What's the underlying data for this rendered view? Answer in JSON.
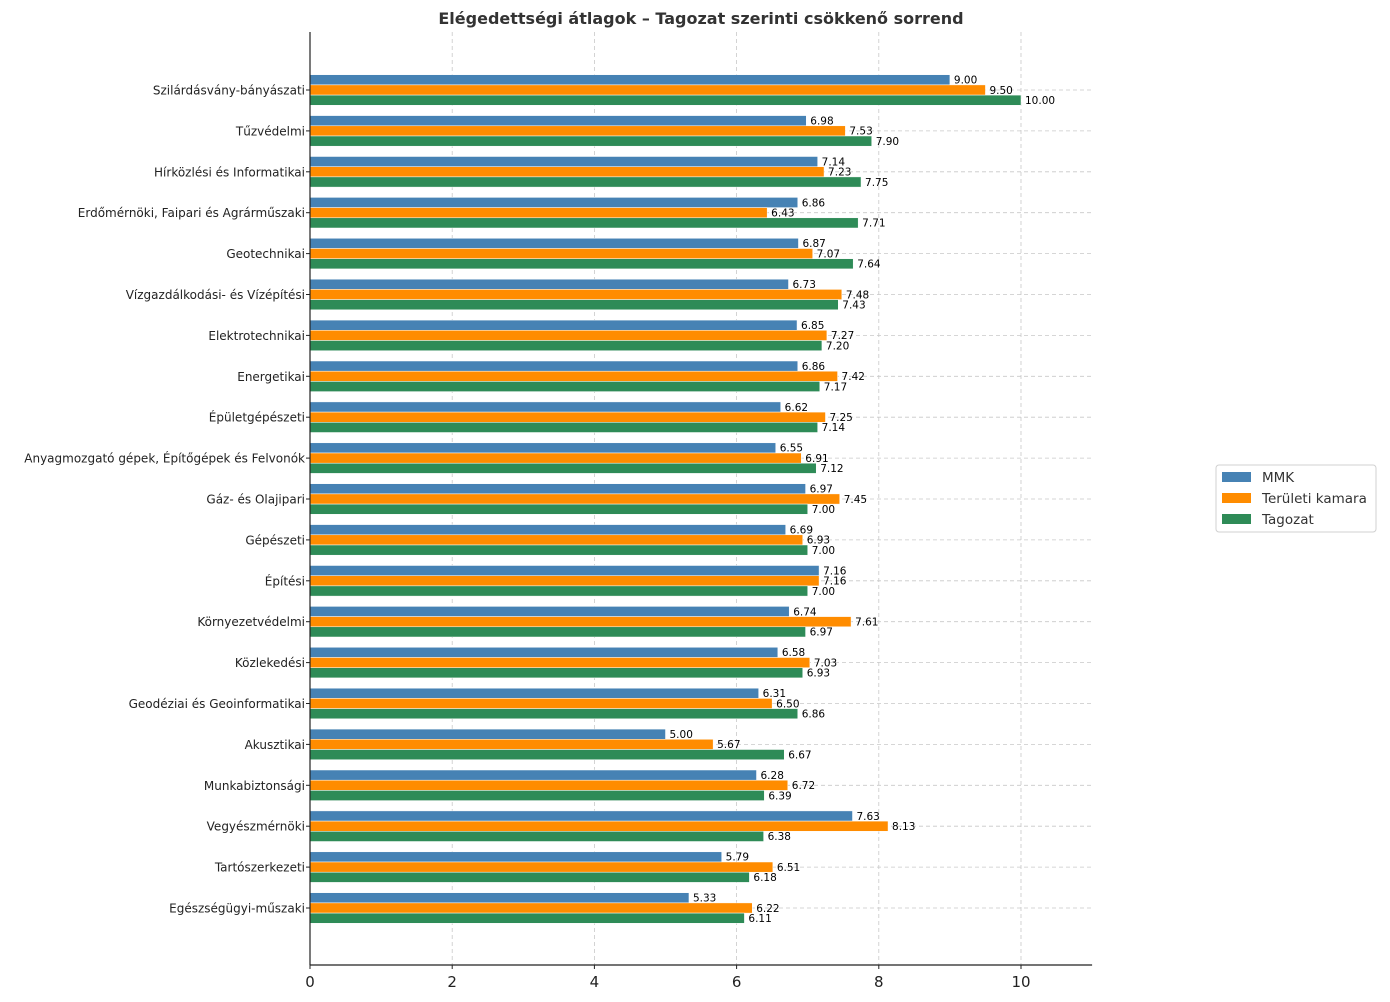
{
  "chart_data": {
    "type": "bar",
    "orientation": "horizontal",
    "title": "Elégedettségi átlagok – Tagozat szerinti csökkenő sorrend",
    "xlabel": "",
    "ylabel": "",
    "xlim": [
      0,
      11
    ],
    "xticks": [
      0,
      2,
      4,
      6,
      8,
      10
    ],
    "grid": true,
    "legend_position": "right",
    "categories": [
      "Szilárdásvány-bányászati",
      "Tűzvédelmi",
      "Hírközlési és Informatikai",
      "Erdőmérnöki, Faipari és Agrárműszaki",
      "Geotechnikai",
      "Vízgazdálkodási- és Vízépítési",
      "Elektrotechnikai",
      "Energetikai",
      "Épületgépészeti",
      "Anyagmozgató gépek, Építőgépek és Felvonók",
      "Gáz- és Olajipari",
      "Gépészeti",
      "Építési",
      "Környezetvédelmi",
      "Közlekedési",
      "Geodéziai és Geoinformatikai",
      "Akusztikai",
      "Munkabiztonsági",
      "Vegyészmérnöki",
      "Tartószerkezeti",
      "Egészségügyi-műszaki"
    ],
    "series": [
      {
        "name": "MMK",
        "color": "#4682b4",
        "values": [
          9.0,
          6.98,
          7.14,
          6.86,
          6.87,
          6.73,
          6.85,
          6.86,
          6.62,
          6.55,
          6.97,
          6.69,
          7.16,
          6.74,
          6.58,
          6.31,
          5.0,
          6.28,
          7.63,
          5.79,
          5.33
        ]
      },
      {
        "name": "Területi kamara",
        "color": "#ff8c00",
        "values": [
          9.5,
          7.53,
          7.23,
          6.43,
          7.07,
          7.48,
          7.27,
          7.42,
          7.25,
          6.91,
          7.45,
          6.93,
          7.16,
          7.61,
          7.03,
          6.5,
          5.67,
          6.72,
          8.13,
          6.51,
          6.22
        ]
      },
      {
        "name": "Tagozat",
        "color": "#2e8b57",
        "values": [
          10.0,
          7.9,
          7.75,
          7.71,
          7.64,
          7.43,
          7.2,
          7.17,
          7.14,
          7.12,
          7.0,
          7.0,
          7.0,
          6.97,
          6.93,
          6.86,
          6.67,
          6.39,
          6.38,
          6.18,
          6.11
        ]
      }
    ]
  }
}
